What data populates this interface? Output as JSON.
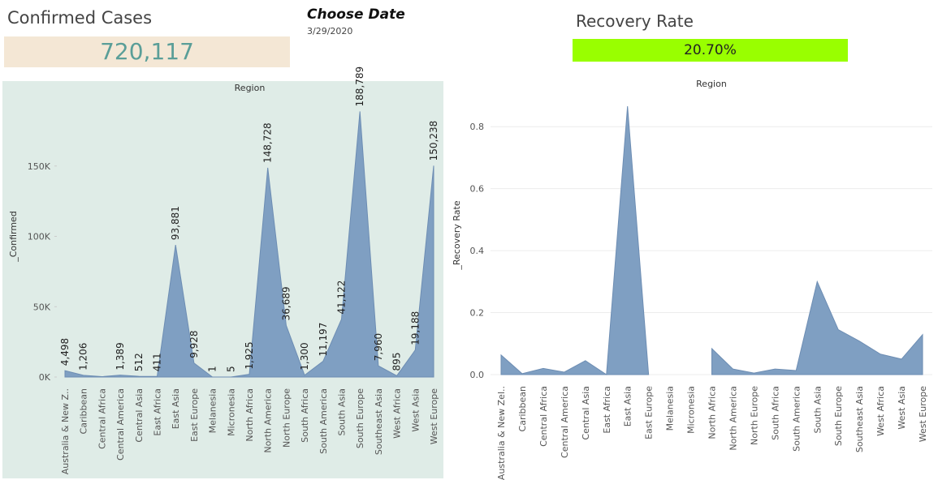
{
  "header": {
    "confirmed_title": "Confirmed Cases",
    "confirmed_value": "720,117",
    "date_title": "Choose Date",
    "date_value": "3/29/2020",
    "recovery_title": "Recovery Rate",
    "recovery_value": "20.70%"
  },
  "chart_data": [
    {
      "type": "area",
      "title": "Region",
      "y_label": "_Confirmed",
      "color": "#7f9fc2",
      "categories": [
        "Australia & New Z..",
        "Caribbean",
        "Central Africa",
        "Central America",
        "Central Asia",
        "East Africa",
        "East Asia",
        "East Europe",
        "Melanesia",
        "Micronesia",
        "North Africa",
        "North America",
        "North Europe",
        "South Africa",
        "South America",
        "South Asia",
        "South Europe",
        "Southeast Asia",
        "West Africa",
        "West Asia",
        "West Europe"
      ],
      "values": [
        4498,
        1206,
        255,
        1389,
        512,
        411,
        93881,
        9928,
        1,
        5,
        1925,
        148728,
        36689,
        1300,
        11197,
        41122,
        188789,
        7960,
        895,
        19188,
        150238
      ],
      "value_labels": [
        "4,498",
        "1,206",
        null,
        "1,389",
        "512",
        "411",
        "93,881",
        "9,928",
        "1",
        "5",
        "1,925",
        "148,728",
        "36,689",
        "1,300",
        "11,197",
        "41,122",
        "188,789",
        "7,960",
        "895",
        "19,188",
        "150,238"
      ],
      "ylim": [
        0,
        200000
      ],
      "yticks": [
        {
          "value": 0,
          "label": "0K"
        },
        {
          "value": 50000,
          "label": "50K"
        },
        {
          "value": 100000,
          "label": "100K"
        },
        {
          "value": 150000,
          "label": "150K"
        }
      ],
      "grid": false
    },
    {
      "type": "area",
      "title": "Region",
      "y_label": "_Recovery Rate",
      "color": "#7f9fc2",
      "categories": [
        "Australia & New Zel..",
        "Caribbean",
        "Central Africa",
        "Central America",
        "Central Asia",
        "East Africa",
        "East Asia",
        "East Europe",
        "Melanesia",
        "Micronesia",
        "North Africa",
        "North America",
        "North Europe",
        "South Africa",
        "South America",
        "South Asia",
        "South Europe",
        "Southeast Asia",
        "West Africa",
        "West Asia",
        "West Europe"
      ],
      "values": [
        0.063,
        0.003,
        0.02,
        0.008,
        0.045,
        0.0,
        0.866,
        0.0,
        null,
        null,
        0.084,
        0.018,
        0.005,
        0.018,
        0.013,
        0.3,
        0.145,
        0.108,
        0.066,
        0.05,
        0.129
      ],
      "ylim": [
        0,
        0.9
      ],
      "yticks": [
        {
          "value": 0,
          "label": "0.0"
        },
        0.2,
        0.4,
        0.6,
        0.8
      ],
      "grid": true
    }
  ]
}
